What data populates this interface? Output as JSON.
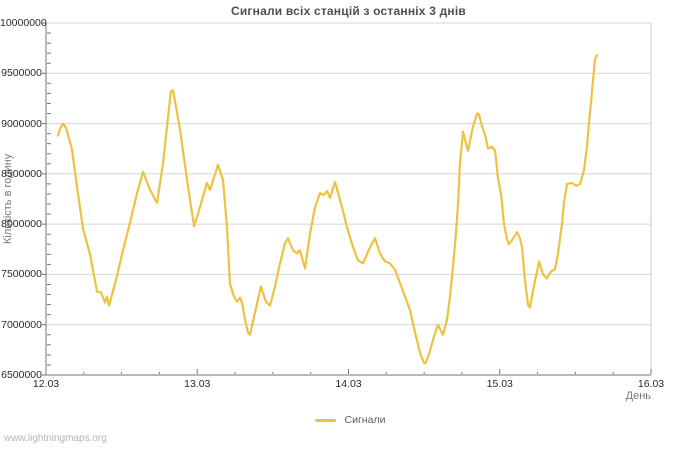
{
  "footer": {
    "watermark": "www.lightningmaps.org"
  },
  "colors": {
    "line": "#edc240",
    "grid": "#d4d4d4",
    "axis": "#757575",
    "border": "#cccccc"
  },
  "chart_data": {
    "type": "line",
    "title": "Сигнали всіх станцій з останніх 3 днів",
    "xlabel": "День",
    "ylabel": "Кількість в годину",
    "x_ticks": [
      {
        "t": 0,
        "label": "12.03"
      },
      {
        "t": 1,
        "label": "13.03"
      },
      {
        "t": 2,
        "label": "14.03"
      },
      {
        "t": 3,
        "label": "15.03"
      },
      {
        "t": 4,
        "label": "16.03"
      }
    ],
    "y_tick_values": [
      10000000,
      9500000,
      9000000,
      8500000,
      8000000,
      7500000,
      7000000,
      6500000
    ],
    "xlim": [
      0,
      4
    ],
    "ylim": [
      6500000,
      10000000
    ],
    "x_minor_step": 0.25,
    "y_minor_step": 100000,
    "grid": "horizontal-only",
    "legend": {
      "position": "bottom-center",
      "entries": [
        {
          "label": "Сигнали",
          "color": "#edc240"
        }
      ]
    },
    "series": [
      {
        "name": "Сигнали",
        "color": "#edc240",
        "points": [
          [
            0.079,
            8880000
          ],
          [
            0.093,
            8950000
          ],
          [
            0.112,
            9000000
          ],
          [
            0.132,
            8960000
          ],
          [
            0.172,
            8740000
          ],
          [
            0.205,
            8370000
          ],
          [
            0.245,
            7950000
          ],
          [
            0.291,
            7700000
          ],
          [
            0.337,
            7330000
          ],
          [
            0.364,
            7320000
          ],
          [
            0.39,
            7220000
          ],
          [
            0.403,
            7280000
          ],
          [
            0.417,
            7190000
          ],
          [
            0.469,
            7480000
          ],
          [
            0.509,
            7740000
          ],
          [
            0.555,
            8010000
          ],
          [
            0.602,
            8310000
          ],
          [
            0.641,
            8520000
          ],
          [
            0.688,
            8340000
          ],
          [
            0.734,
            8210000
          ],
          [
            0.774,
            8610000
          ],
          [
            0.807,
            9070000
          ],
          [
            0.826,
            9320000
          ],
          [
            0.84,
            9330000
          ],
          [
            0.886,
            8940000
          ],
          [
            0.932,
            8440000
          ],
          [
            0.979,
            7980000
          ],
          [
            1.018,
            8170000
          ],
          [
            1.064,
            8410000
          ],
          [
            1.084,
            8340000
          ],
          [
            1.137,
            8590000
          ],
          [
            1.17,
            8440000
          ],
          [
            1.197,
            7970000
          ],
          [
            1.216,
            7410000
          ],
          [
            1.243,
            7280000
          ],
          [
            1.263,
            7230000
          ],
          [
            1.283,
            7270000
          ],
          [
            1.296,
            7220000
          ],
          [
            1.316,
            7050000
          ],
          [
            1.336,
            6920000
          ],
          [
            1.349,
            6900000
          ],
          [
            1.382,
            7120000
          ],
          [
            1.421,
            7380000
          ],
          [
            1.454,
            7230000
          ],
          [
            1.481,
            7190000
          ],
          [
            1.514,
            7380000
          ],
          [
            1.547,
            7610000
          ],
          [
            1.58,
            7810000
          ],
          [
            1.6,
            7860000
          ],
          [
            1.633,
            7740000
          ],
          [
            1.66,
            7710000
          ],
          [
            1.679,
            7740000
          ],
          [
            1.713,
            7560000
          ],
          [
            1.746,
            7910000
          ],
          [
            1.779,
            8170000
          ],
          [
            1.812,
            8310000
          ],
          [
            1.838,
            8290000
          ],
          [
            1.858,
            8330000
          ],
          [
            1.878,
            8260000
          ],
          [
            1.911,
            8420000
          ],
          [
            1.957,
            8170000
          ],
          [
            1.99,
            7970000
          ],
          [
            2.03,
            7770000
          ],
          [
            2.063,
            7640000
          ],
          [
            2.096,
            7610000
          ],
          [
            2.142,
            7770000
          ],
          [
            2.175,
            7860000
          ],
          [
            2.208,
            7710000
          ],
          [
            2.241,
            7630000
          ],
          [
            2.274,
            7610000
          ],
          [
            2.307,
            7550000
          ],
          [
            2.341,
            7410000
          ],
          [
            2.374,
            7280000
          ],
          [
            2.407,
            7140000
          ],
          [
            2.44,
            6920000
          ],
          [
            2.473,
            6720000
          ],
          [
            2.499,
            6620000
          ],
          [
            2.512,
            6620000
          ],
          [
            2.539,
            6740000
          ],
          [
            2.559,
            6850000
          ],
          [
            2.592,
            7000000
          ],
          [
            2.625,
            6900000
          ],
          [
            2.651,
            7050000
          ],
          [
            2.671,
            7280000
          ],
          [
            2.691,
            7580000
          ],
          [
            2.711,
            7910000
          ],
          [
            2.724,
            8200000
          ],
          [
            2.737,
            8610000
          ],
          [
            2.757,
            8920000
          ],
          [
            2.777,
            8800000
          ],
          [
            2.79,
            8730000
          ],
          [
            2.823,
            8970000
          ],
          [
            2.85,
            9100000
          ],
          [
            2.863,
            9090000
          ],
          [
            2.883,
            8970000
          ],
          [
            2.903,
            8890000
          ],
          [
            2.922,
            8750000
          ],
          [
            2.949,
            8770000
          ],
          [
            2.969,
            8730000
          ],
          [
            2.989,
            8450000
          ],
          [
            3.008,
            8300000
          ],
          [
            3.028,
            8000000
          ],
          [
            3.048,
            7850000
          ],
          [
            3.061,
            7800000
          ],
          [
            3.081,
            7840000
          ],
          [
            3.094,
            7870000
          ],
          [
            3.114,
            7920000
          ],
          [
            3.134,
            7860000
          ],
          [
            3.147,
            7770000
          ],
          [
            3.167,
            7440000
          ],
          [
            3.187,
            7200000
          ],
          [
            3.2,
            7170000
          ],
          [
            3.22,
            7340000
          ],
          [
            3.26,
            7630000
          ],
          [
            3.286,
            7500000
          ],
          [
            3.312,
            7460000
          ],
          [
            3.339,
            7530000
          ],
          [
            3.365,
            7550000
          ],
          [
            3.385,
            7710000
          ],
          [
            3.412,
            8010000
          ],
          [
            3.425,
            8220000
          ],
          [
            3.445,
            8400000
          ],
          [
            3.478,
            8410000
          ],
          [
            3.504,
            8380000
          ],
          [
            3.531,
            8400000
          ],
          [
            3.557,
            8540000
          ],
          [
            3.577,
            8770000
          ],
          [
            3.59,
            9010000
          ],
          [
            3.603,
            9210000
          ],
          [
            3.617,
            9440000
          ],
          [
            3.63,
            9640000
          ],
          [
            3.643,
            9680000
          ]
        ]
      }
    ]
  }
}
